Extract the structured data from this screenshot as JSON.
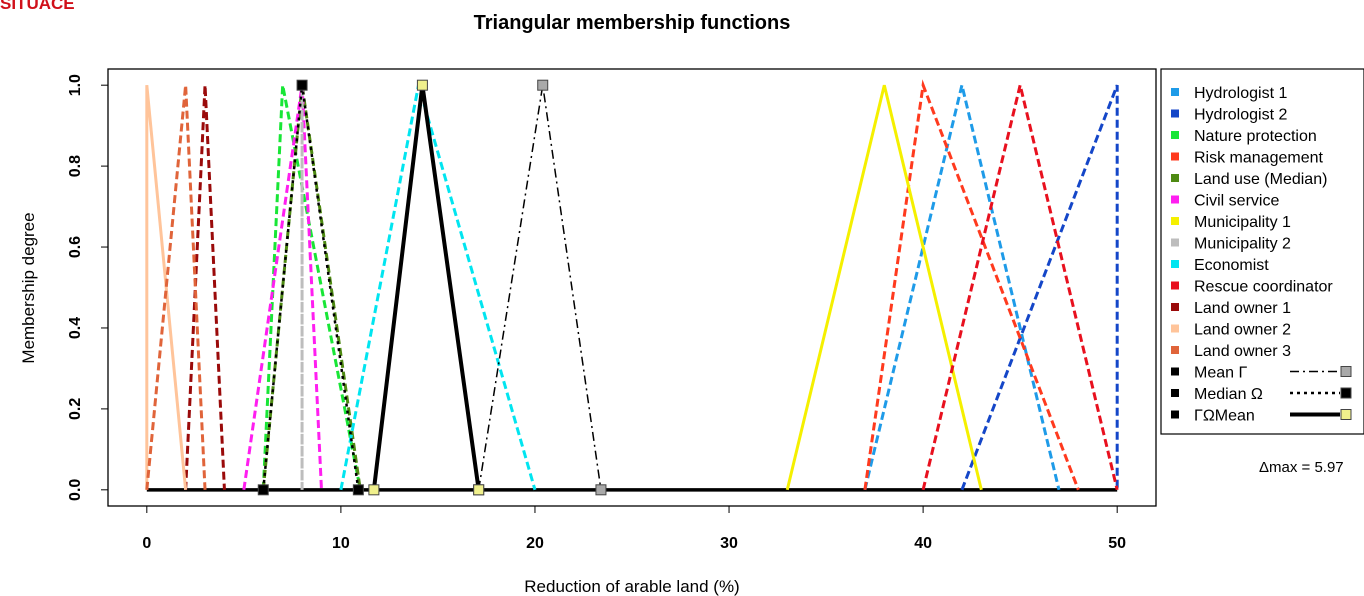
{
  "corner_label": "SITUACE",
  "chart_data": {
    "type": "line",
    "title": "Triangular membership functions",
    "xlabel": "Reduction of arable land (%)",
    "ylabel": "Membership degree",
    "xlim": [
      -2,
      52
    ],
    "ylim": [
      -0.04,
      1.04
    ],
    "xticks": [
      0,
      10,
      20,
      30,
      40,
      50
    ],
    "yticks": [
      0.0,
      0.2,
      0.4,
      0.6,
      0.8,
      1.0
    ],
    "xtick_labels": [
      "0",
      "10",
      "20",
      "30",
      "40",
      "50"
    ],
    "ytick_labels": [
      "0.0",
      "0.2",
      "0.4",
      "0.6",
      "0.8",
      "1.0"
    ],
    "grid": false,
    "legend_position": "right",
    "delta_max_label": "Δmax  = 5.97",
    "series": [
      {
        "name": "Hydrologist 1",
        "color": "#1e9be8",
        "dash": "dashed",
        "width": 3,
        "points": [
          [
            37,
            0
          ],
          [
            42,
            1
          ],
          [
            47,
            0
          ]
        ]
      },
      {
        "name": "Hydrologist 2",
        "color": "#1446c8",
        "dash": "dashed",
        "width": 3,
        "points": [
          [
            42,
            0
          ],
          [
            50,
            1
          ],
          [
            50,
            0
          ]
        ]
      },
      {
        "name": "Nature protection",
        "color": "#18e636",
        "dash": "dashed",
        "width": 3,
        "points": [
          [
            6,
            0
          ],
          [
            7,
            1
          ],
          [
            11,
            0
          ]
        ]
      },
      {
        "name": "Risk management",
        "color": "#ff3a1e",
        "dash": "dashed",
        "width": 3,
        "points": [
          [
            37,
            0
          ],
          [
            40,
            1
          ],
          [
            48,
            0
          ]
        ]
      },
      {
        "name": "Land use (Median)",
        "color": "#4e8a12",
        "dash": "dashed",
        "width": 3,
        "points": [
          [
            6,
            0
          ],
          [
            8,
            1
          ],
          [
            11,
            0
          ]
        ]
      },
      {
        "name": "Civil service",
        "color": "#ff1ef0",
        "dash": "dashed",
        "width": 3,
        "points": [
          [
            5,
            0
          ],
          [
            8,
            1
          ],
          [
            9,
            0
          ]
        ]
      },
      {
        "name": "Municipality 1",
        "color": "#f5f000",
        "dash": "solid",
        "width": 3,
        "points": [
          [
            33,
            0
          ],
          [
            38,
            1
          ],
          [
            43,
            0
          ]
        ]
      },
      {
        "name": "Municipality 2",
        "color": "#bdbdbd",
        "dash": "dashed",
        "width": 3,
        "points": [
          [
            8,
            0
          ],
          [
            8,
            1
          ],
          [
            8,
            0
          ]
        ]
      },
      {
        "name": "Economist",
        "color": "#00e5f0",
        "dash": "dashed",
        "width": 3,
        "points": [
          [
            10,
            0
          ],
          [
            14,
            1
          ],
          [
            20,
            0
          ]
        ]
      },
      {
        "name": "Rescue coordinator",
        "color": "#e8101e",
        "dash": "dashed",
        "width": 3,
        "points": [
          [
            40,
            0
          ],
          [
            45,
            1
          ],
          [
            50,
            0
          ]
        ]
      },
      {
        "name": "Land owner 1",
        "color": "#9a0a0a",
        "dash": "dashed",
        "width": 3,
        "points": [
          [
            2,
            0
          ],
          [
            3,
            1
          ],
          [
            4,
            0
          ]
        ]
      },
      {
        "name": "Land owner 2",
        "color": "#ffc49a",
        "dash": "solid",
        "width": 3,
        "points": [
          [
            0,
            0
          ],
          [
            0,
            1
          ],
          [
            2,
            0
          ]
        ]
      },
      {
        "name": "Land owner 3",
        "color": "#e0643a",
        "dash": "dashed",
        "width": 3,
        "points": [
          [
            0,
            0
          ],
          [
            2,
            1
          ],
          [
            3,
            0
          ]
        ]
      },
      {
        "name": "Mean Γ",
        "color": "#000000",
        "dash": "dashdot",
        "width": 1.5,
        "marker": "square-gray",
        "points": [
          [
            17.1,
            0
          ],
          [
            20.4,
            1
          ],
          [
            23.4,
            0
          ]
        ]
      },
      {
        "name": "Median Ω",
        "color": "#000000",
        "dash": "dotted",
        "width": 2.5,
        "marker": "square-black",
        "points": [
          [
            6,
            0
          ],
          [
            8,
            1
          ],
          [
            10.9,
            0
          ]
        ]
      },
      {
        "name": "ΓΩMean",
        "color": "#000000",
        "dash": "solid",
        "width": 4,
        "marker": "square-yellow",
        "points": [
          [
            11.7,
            0
          ],
          [
            14.2,
            1
          ],
          [
            17.1,
            0
          ]
        ]
      }
    ],
    "baseline": {
      "color": "#000000",
      "points": [
        [
          0,
          0
        ],
        [
          50,
          0
        ]
      ]
    }
  }
}
